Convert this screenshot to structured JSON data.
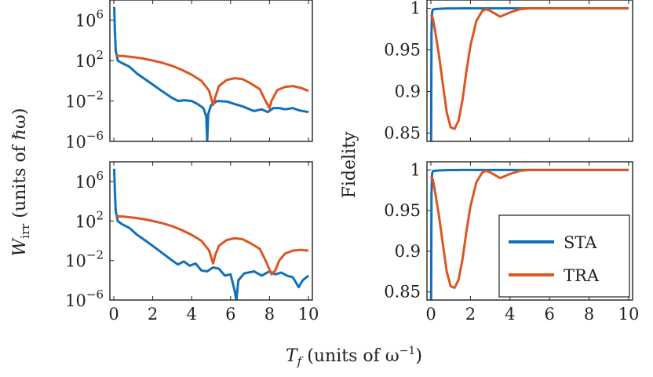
{
  "colors": {
    "sta": "#1070b8",
    "tra": "#dd5522",
    "axis": "#222222"
  },
  "labels": {
    "ylabel_left_var": "W",
    "ylabel_left_sub": "irr",
    "ylabel_left_rest": "(units of ℏω)",
    "ylabel_right": "Fidelity",
    "xlabel_var": "T",
    "xlabel_sub": "f",
    "xlabel_rest": "(units of ω",
    "xlabel_sup": "−1",
    "xlabel_close": ")"
  },
  "ticks": {
    "x": [
      "0",
      "2",
      "4",
      "6",
      "8",
      "10"
    ],
    "w_base": "10",
    "w_exp": [
      "6",
      "2",
      "−2",
      "−6"
    ],
    "fid": [
      "1",
      "0.95",
      "0.9",
      "0.85"
    ]
  },
  "chart_data": [
    {
      "type": "line",
      "panel": "top-left",
      "yscale": "log",
      "xlim": [
        0,
        10
      ],
      "ylim": [
        1e-06,
        100000000.0
      ],
      "ylabel": "W_irr (units of ℏω)",
      "series": [
        {
          "name": "STA",
          "x": [
            0.02,
            0.06,
            0.1,
            0.2,
            0.4,
            0.8,
            1.2,
            1.8,
            2.4,
            3.0,
            3.3,
            3.6,
            4.0,
            4.3,
            4.6,
            4.75,
            4.8,
            4.85,
            5.0,
            5.3,
            5.8,
            6.2,
            6.6,
            7.2,
            7.6,
            7.9,
            8.2,
            8.5,
            8.8,
            9.2,
            9.5,
            10.0
          ],
          "y": [
            20000000.0,
            50000.0,
            1000.0,
            100.0,
            60,
            25,
            5,
            0.8,
            0.12,
            0.02,
            0.01,
            0.012,
            0.01,
            0.005,
            0.002,
            0.0003,
            1e-06,
            0.0005,
            0.004,
            0.01,
            0.009,
            0.005,
            0.003,
            0.001,
            0.0015,
            0.0008,
            0.002,
            0.002,
            0.0015,
            0.002,
            0.0012,
            0.0008
          ]
        },
        {
          "name": "TRA",
          "x": [
            0.1,
            0.5,
            1.0,
            1.5,
            2.0,
            2.5,
            3.0,
            3.5,
            4.0,
            4.5,
            4.9,
            5.1,
            5.2,
            5.4,
            5.8,
            6.2,
            6.6,
            7.0,
            7.5,
            7.8,
            8.0,
            8.1,
            8.4,
            8.8,
            9.2,
            9.6,
            10.0
          ],
          "y": [
            300,
            280,
            220,
            160,
            100,
            60,
            30,
            12,
            4,
            1,
            0.1,
            0.004,
            0.02,
            0.3,
            1.2,
            1.8,
            1.5,
            0.6,
            0.15,
            0.01,
            0.002,
            0.01,
            0.12,
            0.25,
            0.3,
            0.2,
            0.1
          ]
        }
      ]
    },
    {
      "type": "line",
      "panel": "bottom-left",
      "yscale": "log",
      "xlim": [
        0,
        10
      ],
      "ylim": [
        1e-06,
        100000000.0
      ],
      "ylabel": "W_irr (units of ℏω)",
      "series": [
        {
          "name": "STA",
          "x": [
            0.02,
            0.06,
            0.1,
            0.2,
            0.4,
            0.8,
            1.2,
            1.8,
            2.4,
            3.0,
            3.3,
            3.6,
            3.9,
            4.2,
            4.5,
            4.8,
            5.1,
            5.4,
            5.7,
            6.0,
            6.2,
            6.3,
            6.4,
            6.7,
            7.2,
            7.6,
            8.0,
            8.3,
            8.6,
            8.9,
            9.2,
            9.5,
            9.7,
            10.0
          ],
          "y": [
            20000000.0,
            50000.0,
            1000.0,
            100.0,
            50,
            20,
            4,
            0.6,
            0.08,
            0.01,
            0.004,
            0.008,
            0.003,
            0.005,
            0.001,
            0.0008,
            0.002,
            0.0015,
            0.0003,
            0.0004,
            1e-05,
            1e-06,
            0.0001,
            0.0005,
            0.0008,
            0.0003,
            0.0008,
            0.0004,
            0.0006,
            0.0003,
            0.0002,
            2e-05,
            0.0001,
            0.0003
          ]
        },
        {
          "name": "TRA",
          "x": [
            0.1,
            0.5,
            1.0,
            1.5,
            2.0,
            2.5,
            3.0,
            3.5,
            4.0,
            4.5,
            4.9,
            5.1,
            5.2,
            5.4,
            5.8,
            6.2,
            6.6,
            7.0,
            7.5,
            7.8,
            8.1,
            8.3,
            8.5,
            8.8,
            9.2,
            9.6,
            10.0
          ],
          "y": [
            300,
            280,
            220,
            160,
            100,
            60,
            30,
            12,
            4,
            1,
            0.1,
            0.005,
            0.03,
            0.3,
            1.2,
            1.8,
            1.5,
            0.6,
            0.15,
            0.01,
            0.0004,
            0.001,
            0.01,
            0.05,
            0.1,
            0.12,
            0.1
          ]
        }
      ]
    },
    {
      "type": "line",
      "panel": "top-right",
      "xlim": [
        0,
        10
      ],
      "ylim": [
        0.84,
        1.01
      ],
      "ylabel": "Fidelity",
      "series": [
        {
          "name": "STA",
          "x": [
            0.0,
            0.01,
            0.03,
            0.06,
            0.1,
            0.2,
            0.3,
            0.5,
            0.8,
            1.2,
            1.6,
            2.0,
            3.0,
            10.0
          ],
          "y": [
            0.8,
            0.84,
            0.97,
            0.995,
            0.9985,
            0.999,
            0.9992,
            0.9995,
            0.9998,
            0.9999,
            1.0,
            1.0,
            1.0,
            1.0
          ]
        },
        {
          "name": "TRA",
          "x": [
            0.0,
            0.05,
            0.1,
            0.2,
            0.4,
            0.6,
            0.8,
            1.0,
            1.2,
            1.4,
            1.6,
            1.8,
            2.0,
            2.3,
            2.6,
            2.8,
            3.0,
            3.5,
            4.0,
            4.5,
            5.0,
            6.0,
            8.0,
            10.0
          ],
          "y": [
            0.992,
            0.99,
            0.988,
            0.975,
            0.945,
            0.91,
            0.875,
            0.857,
            0.855,
            0.865,
            0.89,
            0.925,
            0.955,
            0.985,
            0.997,
            0.999,
            0.997,
            0.99,
            0.995,
            0.999,
            1.0,
            1.0,
            1.0,
            1.0
          ]
        }
      ]
    },
    {
      "type": "line",
      "panel": "bottom-right",
      "xlim": [
        0,
        10
      ],
      "ylim": [
        0.84,
        1.01
      ],
      "ylabel": "Fidelity",
      "legend": {
        "position": "bottom-right",
        "entries": [
          "STA",
          "TRA"
        ]
      },
      "series": [
        {
          "name": "STA",
          "x": [
            0.0,
            0.01,
            0.03,
            0.06,
            0.1,
            0.2,
            0.3,
            0.5,
            0.8,
            1.2,
            1.6,
            2.0,
            3.0,
            10.0
          ],
          "y": [
            0.8,
            0.84,
            0.97,
            0.995,
            0.9985,
            0.999,
            0.9992,
            0.9995,
            0.9998,
            0.9999,
            1.0,
            1.0,
            1.0,
            1.0
          ]
        },
        {
          "name": "TRA",
          "x": [
            0.0,
            0.05,
            0.1,
            0.2,
            0.4,
            0.6,
            0.8,
            1.0,
            1.2,
            1.4,
            1.6,
            1.8,
            2.0,
            2.3,
            2.6,
            2.8,
            3.0,
            3.5,
            4.0,
            4.5,
            5.0,
            6.0,
            8.0,
            10.0
          ],
          "y": [
            0.992,
            0.99,
            0.988,
            0.975,
            0.945,
            0.91,
            0.875,
            0.857,
            0.855,
            0.865,
            0.89,
            0.925,
            0.955,
            0.985,
            0.997,
            0.999,
            0.997,
            0.99,
            0.995,
            0.999,
            1.0,
            1.0,
            1.0,
            1.0
          ]
        }
      ]
    }
  ]
}
